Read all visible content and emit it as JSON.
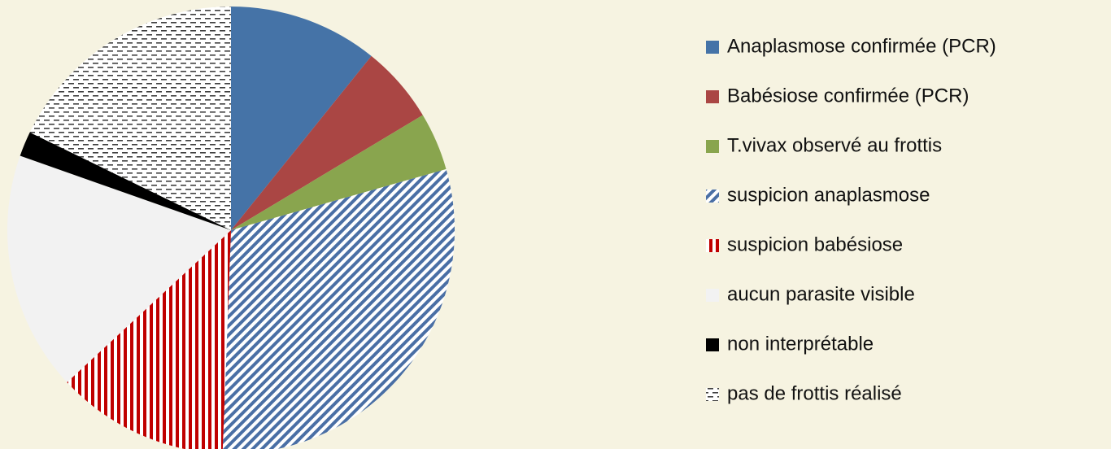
{
  "chart_data": {
    "type": "pie",
    "categories": [
      "Anaplasmose confirmée (PCR)",
      "Babésiose confirmée (PCR)",
      "T.vivax observé au frottis",
      "suspicion anaplasmose",
      "suspicion babésiose",
      "aucun parasite visible",
      "non interprétable",
      "pas de frottis réalisé"
    ],
    "values": [
      10.8,
      5.6,
      4.2,
      30,
      12.5,
      17.3,
      1.8,
      17.8
    ],
    "colors": [
      "#4573a7",
      "#aa4644",
      "#89a54e",
      "#4a6fa5",
      "#c00000",
      "#f2f2f2",
      "#000000",
      "#404040"
    ],
    "patterns": [
      "solid",
      "solid",
      "solid",
      "diagonal",
      "vertical",
      "solid",
      "solid",
      "dashes"
    ],
    "legend": "right"
  }
}
